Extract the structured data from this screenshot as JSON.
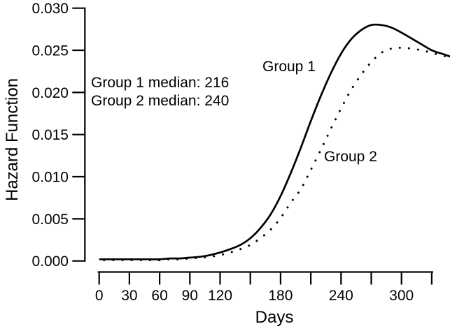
{
  "colors": {
    "foreground": "#000000",
    "background": "#ffffff"
  },
  "chart_data": {
    "type": "line",
    "title": "",
    "xlabel": "Days",
    "ylabel": "Hazard Function",
    "xlim": [
      0,
      350
    ],
    "ylim": [
      0,
      0.03
    ],
    "grid": false,
    "legend": "none (curves labeled inline)",
    "x": [
      0,
      10,
      20,
      30,
      40,
      50,
      60,
      70,
      80,
      90,
      100,
      110,
      120,
      130,
      140,
      150,
      160,
      170,
      180,
      190,
      200,
      210,
      220,
      230,
      240,
      250,
      260,
      270,
      280,
      290,
      300,
      310,
      320,
      330,
      340,
      350
    ],
    "series": [
      {
        "name": "Group 1",
        "line_style": "solid",
        "median": 216,
        "values": [
          0.0002,
          0.0002,
          0.0002,
          0.0002,
          0.0002,
          0.0002,
          0.0002,
          0.0003,
          0.0003,
          0.0004,
          0.0005,
          0.0007,
          0.001,
          0.0014,
          0.0019,
          0.0027,
          0.0039,
          0.0055,
          0.0077,
          0.0104,
          0.0134,
          0.0166,
          0.0196,
          0.0223,
          0.0246,
          0.0263,
          0.0274,
          0.028,
          0.028,
          0.0277,
          0.0271,
          0.0264,
          0.0257,
          0.025,
          0.0246,
          0.0242
        ]
      },
      {
        "name": "Group 2",
        "line_style": "dotted",
        "median": 240,
        "values": [
          0.0001,
          0.0001,
          0.0001,
          0.0001,
          0.0001,
          0.0001,
          0.0001,
          0.0002,
          0.0002,
          0.0003,
          0.0004,
          0.0005,
          0.0007,
          0.001,
          0.0014,
          0.0019,
          0.0027,
          0.0037,
          0.0051,
          0.0069,
          0.0085,
          0.0108,
          0.0132,
          0.0157,
          0.0181,
          0.0203,
          0.0221,
          0.0236,
          0.0247,
          0.0252,
          0.0253,
          0.0252,
          0.025,
          0.0247,
          0.0244,
          0.0241
        ]
      }
    ],
    "x_ticks_all": [
      0,
      30,
      60,
      90,
      120,
      150,
      180,
      210,
      240,
      270,
      300,
      330
    ],
    "x_ticks_labeled": [
      {
        "day": 0,
        "text": "0"
      },
      {
        "day": 30,
        "text": "30"
      },
      {
        "day": 60,
        "text": "60"
      },
      {
        "day": 90,
        "text": "90"
      },
      {
        "day": 120,
        "text": "120"
      },
      {
        "day": 180,
        "text": "180"
      },
      {
        "day": 240,
        "text": "240"
      },
      {
        "day": 300,
        "text": "300"
      }
    ],
    "y_ticks": [
      {
        "value": 0.0,
        "text": "0.000"
      },
      {
        "value": 0.005,
        "text": "0.005"
      },
      {
        "value": 0.01,
        "text": "0.010"
      },
      {
        "value": 0.015,
        "text": "0.015"
      },
      {
        "value": 0.02,
        "text": "0.020"
      },
      {
        "value": 0.025,
        "text": "0.025"
      },
      {
        "value": 0.03,
        "text": "0.030"
      }
    ],
    "annotations": {
      "median_lines": [
        "Group 1 median: 216",
        "Group 2 median: 240"
      ],
      "curve_labels": [
        "Group 1",
        "Group 2"
      ]
    }
  }
}
